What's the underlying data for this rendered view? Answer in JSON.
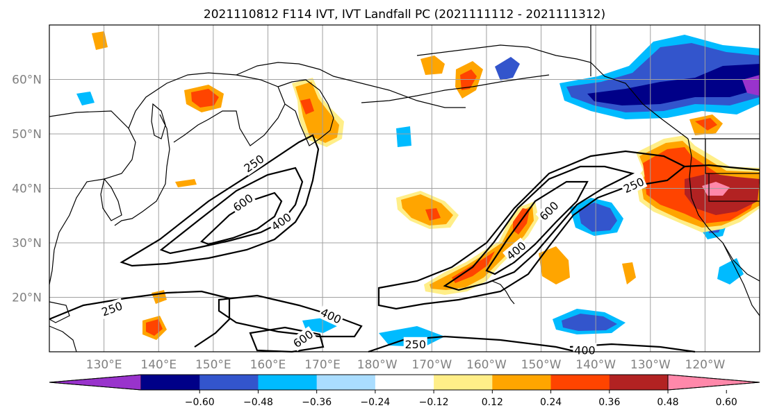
{
  "title": "2021110812 F114 IVT, IVT Landfall PC (2021111112 - 2021111312)",
  "lat_labels": [
    {
      "lat": 60,
      "text": "60°N"
    },
    {
      "lat": 50,
      "text": "50°N"
    },
    {
      "lat": 40,
      "text": "40°N"
    },
    {
      "lat": 30,
      "text": "30°N"
    },
    {
      "lat": 20,
      "text": "20°N"
    }
  ],
  "lon_labels": [
    {
      "lon": 130,
      "text": "130°E"
    },
    {
      "lon": 140,
      "text": "140°E"
    },
    {
      "lon": 150,
      "text": "150°E"
    },
    {
      "lon": 160,
      "text": "160°E"
    },
    {
      "lon": 170,
      "text": "170°E"
    },
    {
      "lon": 180,
      "text": "180°W"
    },
    {
      "lon": 190,
      "text": "170°W"
    },
    {
      "lon": 200,
      "text": "160°W"
    },
    {
      "lon": 210,
      "text": "150°W"
    },
    {
      "lon": 220,
      "text": "140°W"
    },
    {
      "lon": 230,
      "text": "130°W"
    },
    {
      "lon": 240,
      "text": "120°W"
    }
  ],
  "map_extent": {
    "lon_min": 120,
    "lon_max": 250,
    "lat_min": 10,
    "lat_max": 70
  },
  "colorbar": {
    "colors": [
      "#9933cc",
      "#000088",
      "#3355cc",
      "#00bbff",
      "#aaddff",
      "#ffffff",
      "#ffee88",
      "#ffa500",
      "#ff4400",
      "#b22222",
      "#ff88aa"
    ],
    "ticks": [
      "-0.60",
      "-0.48",
      "-0.36",
      "-0.24",
      "-0.12",
      "0.12",
      "0.24",
      "0.36",
      "0.48",
      "0.60"
    ]
  },
  "contour_labels": [
    {
      "text": "250",
      "lon": 157.5,
      "lat": 44.5,
      "rot": -35
    },
    {
      "text": "600",
      "lon": 155.5,
      "lat": 37.3,
      "rot": -35
    },
    {
      "text": "400",
      "lon": 162.5,
      "lat": 33.8,
      "rot": -35
    },
    {
      "text": "250",
      "lon": 131.5,
      "lat": 17.8,
      "rot": -20
    },
    {
      "text": "400",
      "lon": 171.5,
      "lat": 16.5,
      "rot": 25
    },
    {
      "text": "600",
      "lon": 166.5,
      "lat": 12.3,
      "rot": -35
    },
    {
      "text": "250",
      "lon": 187,
      "lat": 11.3,
      "rot": 0
    },
    {
      "text": "400",
      "lon": 218,
      "lat": 10.2,
      "rot": 0
    },
    {
      "text": "400",
      "lon": 205.5,
      "lat": 28.5,
      "rot": -40
    },
    {
      "text": "600",
      "lon": 211.5,
      "lat": 35.8,
      "rot": -45
    },
    {
      "text": "250",
      "lon": 227,
      "lat": 40.5,
      "rot": -25
    }
  ],
  "shading_colors": {
    "neg_strong": "#000088",
    "neg_mid": "#3355cc",
    "neg_light": "#00bbff",
    "pos_light": "#ffee88",
    "pos_mid": "#ffa500",
    "pos_strong": "#ff4400",
    "pos_dark": "#b22222",
    "pos_max": "#ff88aa"
  }
}
